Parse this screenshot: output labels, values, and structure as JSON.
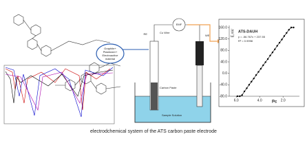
{
  "caption": "electrodchemical system of the ATS carbon paste electrode",
  "setup": {
    "meter": "EMF",
    "wire": "Cu Wire",
    "paste": "Carbon Paste",
    "solution": "Sample Solution",
    "composition": [
      "Graphite+",
      "Plasticizer+",
      "Electroactive",
      "material"
    ],
    "ref_label": "RE",
    "work_label": "WE"
  },
  "calibration_plot": {
    "title": "ATS-DAUH",
    "equation": "y = -56.767x + 237.55",
    "r2": "R² = 0.9998",
    "ylabel": "E,mV",
    "xlabel": "Pc",
    "xlim": [
      6.6,
      0.6
    ],
    "ylim": [
      -80,
      160
    ],
    "xticks": [
      {
        "value": 6,
        "label": "6.0"
      },
      {
        "value": 4,
        "label": "4.0"
      },
      {
        "value": 2,
        "label": "2.0"
      }
    ],
    "yticks": [
      {
        "value": 160,
        "label": "160.0"
      },
      {
        "value": 120,
        "label": "120.0"
      },
      {
        "value": 80,
        "label": "80.0"
      },
      {
        "value": 40,
        "label": "40.0"
      },
      {
        "value": 0,
        "label": "0.0"
      },
      {
        "value": -40,
        "label": "-40.0"
      },
      {
        "value": -80,
        "label": "-80.0"
      }
    ],
    "x": [
      5.9,
      5.7,
      5.5,
      5.3,
      5.1,
      4.9,
      4.7,
      4.5,
      4.3,
      4.1,
      3.9,
      3.7,
      3.5,
      3.3,
      3.1,
      2.9,
      2.7,
      2.5,
      2.3,
      2.1,
      1.9,
      1.7,
      1.5,
      1.3,
      1.1
    ],
    "y": [
      -80,
      -80,
      -76,
      -63,
      -52,
      -40,
      -29,
      -18,
      -6,
      5,
      16,
      28,
      39,
      50,
      62,
      73,
      84,
      96,
      107,
      118,
      130,
      141,
      152,
      160,
      160
    ]
  }
}
